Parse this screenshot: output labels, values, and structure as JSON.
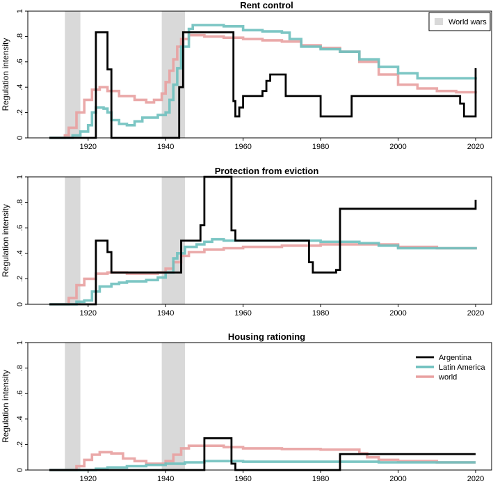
{
  "legend_wars": {
    "label": "World wars",
    "color": "#d9d9d9"
  },
  "series_legend": [
    {
      "name": "Argentina",
      "color": "#000000"
    },
    {
      "name": "Latin America",
      "color": "#6ec0be"
    },
    {
      "name": "world",
      "color": "#e8a0a0"
    }
  ],
  "chart_data": [
    {
      "type": "line",
      "step": true,
      "title": "Rent control",
      "ylabel": "Regulation intensity",
      "xlim": [
        1910,
        2020
      ],
      "ylim": [
        0,
        1
      ],
      "x_ticks": [
        1920,
        1940,
        1960,
        1980,
        2000,
        2020
      ],
      "y_ticks": [
        0,
        0.2,
        0.4,
        0.6,
        0.8,
        1
      ],
      "y_tick_labels": [
        "0",
        ".2",
        ".4",
        ".6",
        ".8",
        "1"
      ],
      "shaded_periods": [
        [
          1914,
          1918
        ],
        [
          1939,
          1945
        ]
      ],
      "legend": "wars",
      "series": [
        {
          "name": "Argentina",
          "points": [
            [
              1910,
              0
            ],
            [
              1921,
              0
            ],
            [
              1922,
              0.833
            ],
            [
              1924.5,
              0.833
            ],
            [
              1925,
              0.54
            ],
            [
              1926,
              0
            ],
            [
              1943,
              0
            ],
            [
              1943.5,
              0.4
            ],
            [
              1944.5,
              0.833
            ],
            [
              1957,
              0.833
            ],
            [
              1957.5,
              0.29
            ],
            [
              1958,
              0.17
            ],
            [
              1959,
              0.24
            ],
            [
              1960,
              0.33
            ],
            [
              1965,
              0.37
            ],
            [
              1966,
              0.45
            ],
            [
              1967,
              0.5
            ],
            [
              1971,
              0.33
            ],
            [
              1979,
              0.33
            ],
            [
              1980,
              0.17
            ],
            [
              1987,
              0.17
            ],
            [
              1988,
              0.33
            ],
            [
              2015,
              0.33
            ],
            [
              2016,
              0.27
            ],
            [
              2017,
              0.17
            ],
            [
              2020,
              0.17
            ],
            [
              2020,
              0.55
            ]
          ]
        },
        {
          "name": "Latin America",
          "points": [
            [
              1910,
              0
            ],
            [
              1915,
              0
            ],
            [
              1916,
              0.02
            ],
            [
              1918,
              0.05
            ],
            [
              1920,
              0.1
            ],
            [
              1921,
              0.2
            ],
            [
              1922,
              0.24
            ],
            [
              1924,
              0.23
            ],
            [
              1925,
              0.2
            ],
            [
              1926,
              0.14
            ],
            [
              1928,
              0.11
            ],
            [
              1930,
              0.1
            ],
            [
              1932,
              0.13
            ],
            [
              1934,
              0.16
            ],
            [
              1936,
              0.16
            ],
            [
              1938,
              0.18
            ],
            [
              1940,
              0.2
            ],
            [
              1941,
              0.3
            ],
            [
              1942,
              0.42
            ],
            [
              1943,
              0.55
            ],
            [
              1944,
              0.72
            ],
            [
              1946,
              0.86
            ],
            [
              1947,
              0.89
            ],
            [
              1955,
              0.88
            ],
            [
              1960,
              0.85
            ],
            [
              1965,
              0.84
            ],
            [
              1970,
              0.83
            ],
            [
              1972,
              0.78
            ],
            [
              1975,
              0.72
            ],
            [
              1980,
              0.7
            ],
            [
              1985,
              0.68
            ],
            [
              1990,
              0.62
            ],
            [
              1995,
              0.56
            ],
            [
              2000,
              0.51
            ],
            [
              2005,
              0.47
            ],
            [
              2020,
              0.46
            ]
          ]
        },
        {
          "name": "world",
          "points": [
            [
              1910,
              0
            ],
            [
              1913,
              0
            ],
            [
              1914,
              0.02
            ],
            [
              1915,
              0.08
            ],
            [
              1917,
              0.2
            ],
            [
              1919,
              0.3
            ],
            [
              1921,
              0.38
            ],
            [
              1923,
              0.4
            ],
            [
              1925,
              0.37
            ],
            [
              1928,
              0.33
            ],
            [
              1932,
              0.3
            ],
            [
              1935,
              0.28
            ],
            [
              1937,
              0.3
            ],
            [
              1939,
              0.35
            ],
            [
              1940,
              0.44
            ],
            [
              1941,
              0.53
            ],
            [
              1942,
              0.62
            ],
            [
              1943,
              0.72
            ],
            [
              1944,
              0.78
            ],
            [
              1946,
              0.81
            ],
            [
              1950,
              0.8
            ],
            [
              1955,
              0.79
            ],
            [
              1960,
              0.78
            ],
            [
              1965,
              0.77
            ],
            [
              1970,
              0.76
            ],
            [
              1975,
              0.73
            ],
            [
              1980,
              0.71
            ],
            [
              1985,
              0.68
            ],
            [
              1990,
              0.6
            ],
            [
              1995,
              0.5
            ],
            [
              2000,
              0.42
            ],
            [
              2005,
              0.39
            ],
            [
              2010,
              0.37
            ],
            [
              2015,
              0.36
            ],
            [
              2020,
              0.35
            ]
          ]
        }
      ]
    },
    {
      "type": "line",
      "step": true,
      "title": "Protection from eviction",
      "ylabel": "Regulation intensity",
      "xlim": [
        1910,
        2020
      ],
      "ylim": [
        0,
        1
      ],
      "x_ticks": [
        1920,
        1940,
        1960,
        1980,
        2000,
        2020
      ],
      "y_ticks": [
        0,
        0.2,
        0.4,
        0.6,
        0.8,
        1
      ],
      "y_tick_labels": [
        "0",
        ".2",
        ".4",
        ".6",
        ".8",
        "1"
      ],
      "shaded_periods": [
        [
          1914,
          1918
        ],
        [
          1939,
          1945
        ]
      ],
      "legend": "none",
      "series": [
        {
          "name": "Argentina",
          "points": [
            [
              1910,
              0
            ],
            [
              1921,
              0
            ],
            [
              1922,
              0.5
            ],
            [
              1924.5,
              0.5
            ],
            [
              1925,
              0.41
            ],
            [
              1926,
              0.25
            ],
            [
              1943,
              0.25
            ],
            [
              1944,
              0.5
            ],
            [
              1948,
              0.5
            ],
            [
              1949,
              0.62
            ],
            [
              1950,
              1
            ],
            [
              1956,
              1
            ],
            [
              1957,
              0.58
            ],
            [
              1958,
              0.5
            ],
            [
              1976,
              0.5
            ],
            [
              1977,
              0.33
            ],
            [
              1978,
              0.25
            ],
            [
              1983,
              0.25
            ],
            [
              1984,
              0.27
            ],
            [
              1985,
              0.75
            ],
            [
              2020,
              0.75
            ],
            [
              2020,
              0.82
            ]
          ]
        },
        {
          "name": "Latin America",
          "points": [
            [
              1910,
              0
            ],
            [
              1916,
              0
            ],
            [
              1917,
              0.02
            ],
            [
              1919,
              0.03
            ],
            [
              1921,
              0.1
            ],
            [
              1923,
              0.14
            ],
            [
              1926,
              0.16
            ],
            [
              1928,
              0.17
            ],
            [
              1930,
              0.18
            ],
            [
              1935,
              0.19
            ],
            [
              1938,
              0.21
            ],
            [
              1940,
              0.25
            ],
            [
              1942,
              0.36
            ],
            [
              1943,
              0.4
            ],
            [
              1945,
              0.45
            ],
            [
              1948,
              0.47
            ],
            [
              1950,
              0.49
            ],
            [
              1952,
              0.51
            ],
            [
              1955,
              0.5
            ],
            [
              1970,
              0.5
            ],
            [
              1980,
              0.49
            ],
            [
              1985,
              0.49
            ],
            [
              1990,
              0.48
            ],
            [
              1995,
              0.46
            ],
            [
              2000,
              0.44
            ],
            [
              2020,
              0.43
            ]
          ]
        },
        {
          "name": "world",
          "points": [
            [
              1910,
              0
            ],
            [
              1914,
              0
            ],
            [
              1915,
              0.05
            ],
            [
              1917,
              0.15
            ],
            [
              1919,
              0.2
            ],
            [
              1922,
              0.24
            ],
            [
              1925,
              0.25
            ],
            [
              1930,
              0.24
            ],
            [
              1935,
              0.24
            ],
            [
              1938,
              0.25
            ],
            [
              1940,
              0.28
            ],
            [
              1942,
              0.33
            ],
            [
              1944,
              0.38
            ],
            [
              1946,
              0.41
            ],
            [
              1950,
              0.43
            ],
            [
              1955,
              0.44
            ],
            [
              1960,
              0.45
            ],
            [
              1970,
              0.46
            ],
            [
              1980,
              0.47
            ],
            [
              1990,
              0.47
            ],
            [
              2000,
              0.45
            ],
            [
              2010,
              0.44
            ],
            [
              2020,
              0.43
            ]
          ]
        }
      ]
    },
    {
      "type": "line",
      "step": true,
      "title": "Housing rationing",
      "ylabel": "Regulation intensity",
      "xlim": [
        1910,
        2020
      ],
      "ylim": [
        0,
        1
      ],
      "x_ticks": [
        1920,
        1940,
        1960,
        1980,
        2000,
        2020
      ],
      "y_ticks": [
        0,
        0.2,
        0.4,
        0.6,
        0.8,
        1
      ],
      "y_tick_labels": [
        "0",
        ".2",
        ".4",
        ".6",
        ".8",
        "1"
      ],
      "shaded_periods": [
        [
          1914,
          1918
        ],
        [
          1939,
          1945
        ]
      ],
      "legend": "series",
      "series": [
        {
          "name": "Argentina",
          "points": [
            [
              1910,
              0
            ],
            [
              1949,
              0
            ],
            [
              1950,
              0.25
            ],
            [
              1956,
              0.25
            ],
            [
              1957,
              0.05
            ],
            [
              1958,
              0
            ],
            [
              1984,
              0
            ],
            [
              1985,
              0.125
            ],
            [
              2020,
              0.125
            ]
          ]
        },
        {
          "name": "Latin America",
          "points": [
            [
              1910,
              0
            ],
            [
              1920,
              0
            ],
            [
              1922,
              0.01
            ],
            [
              1925,
              0.02
            ],
            [
              1930,
              0.03
            ],
            [
              1935,
              0.04
            ],
            [
              1940,
              0.05
            ],
            [
              1945,
              0.06
            ],
            [
              1950,
              0.07
            ],
            [
              1960,
              0.065
            ],
            [
              1980,
              0.065
            ],
            [
              1990,
              0.065
            ],
            [
              1995,
              0.06
            ],
            [
              2000,
              0.06
            ],
            [
              2020,
              0.06
            ]
          ]
        },
        {
          "name": "world",
          "points": [
            [
              1910,
              0
            ],
            [
              1915,
              0
            ],
            [
              1917,
              0.03
            ],
            [
              1919,
              0.08
            ],
            [
              1921,
              0.12
            ],
            [
              1923,
              0.14
            ],
            [
              1926,
              0.13
            ],
            [
              1929,
              0.09
            ],
            [
              1932,
              0.07
            ],
            [
              1935,
              0.05
            ],
            [
              1938,
              0.05
            ],
            [
              1940,
              0.07
            ],
            [
              1942,
              0.12
            ],
            [
              1944,
              0.17
            ],
            [
              1946,
              0.19
            ],
            [
              1950,
              0.19
            ],
            [
              1955,
              0.18
            ],
            [
              1960,
              0.17
            ],
            [
              1970,
              0.165
            ],
            [
              1980,
              0.16
            ],
            [
              1988,
              0.16
            ],
            [
              1990,
              0.13
            ],
            [
              1992,
              0.1
            ],
            [
              1995,
              0.08
            ],
            [
              2000,
              0.07
            ],
            [
              2010,
              0.06
            ],
            [
              2020,
              0.06
            ]
          ]
        }
      ]
    }
  ]
}
